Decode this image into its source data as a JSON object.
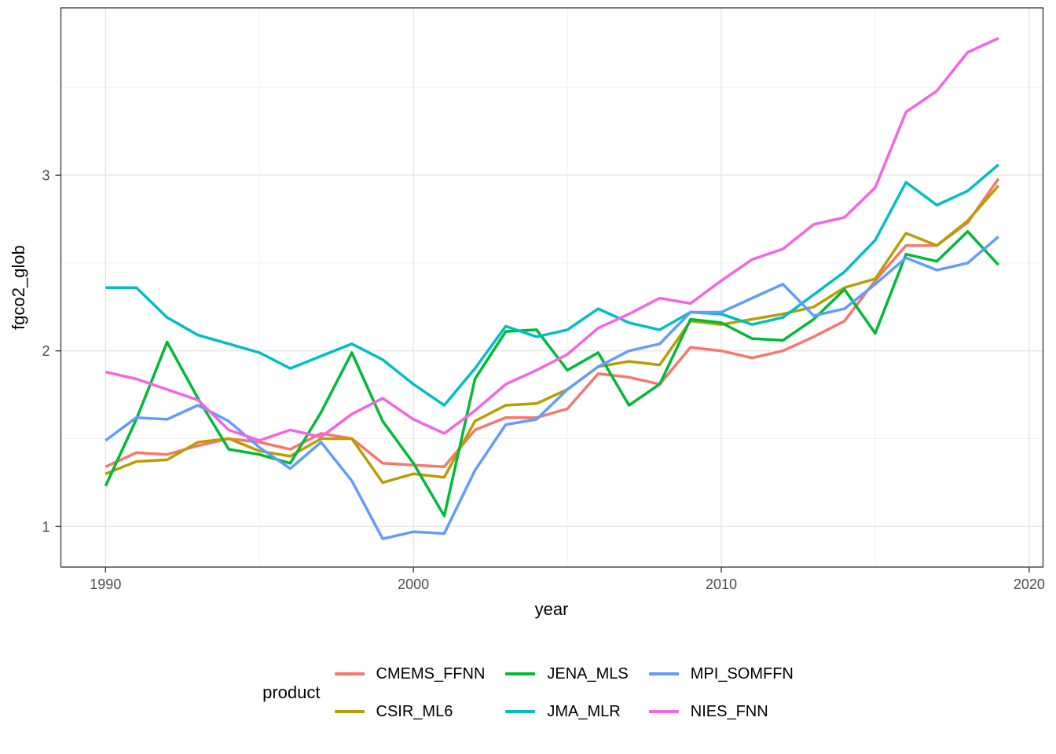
{
  "chart_data": {
    "type": "line",
    "title": "",
    "xlabel": "year",
    "ylabel": "fgco2_glob",
    "legend_title": "product",
    "legend_position": "bottom",
    "grid": true,
    "x": [
      1990,
      1991,
      1992,
      1993,
      1994,
      1995,
      1996,
      1997,
      1998,
      1999,
      2000,
      2001,
      2002,
      2003,
      2004,
      2005,
      2006,
      2007,
      2008,
      2009,
      2010,
      2011,
      2012,
      2013,
      2014,
      2015,
      2016,
      2017,
      2018,
      2019
    ],
    "series": [
      {
        "name": "CMEMS_FFNN",
        "color": "#F8766D",
        "values": [
          1.34,
          1.42,
          1.41,
          1.46,
          1.5,
          1.48,
          1.44,
          1.53,
          1.5,
          1.36,
          1.35,
          1.34,
          1.55,
          1.62,
          1.62,
          1.67,
          1.87,
          1.85,
          1.81,
          2.02,
          2.0,
          1.96,
          2.0,
          2.08,
          2.17,
          2.4,
          2.6,
          2.6,
          2.73,
          2.98
        ]
      },
      {
        "name": "CSIR_ML6",
        "color": "#B79F00",
        "values": [
          1.3,
          1.37,
          1.38,
          1.48,
          1.5,
          1.43,
          1.4,
          1.5,
          1.5,
          1.25,
          1.3,
          1.28,
          1.6,
          1.69,
          1.7,
          1.78,
          1.91,
          1.94,
          1.92,
          2.17,
          2.15,
          2.18,
          2.21,
          2.25,
          2.36,
          2.41,
          2.67,
          2.6,
          2.74,
          2.94
        ]
      },
      {
        "name": "JENA_MLS",
        "color": "#00BA38",
        "values": [
          1.23,
          1.61,
          2.05,
          1.73,
          1.44,
          1.41,
          1.36,
          1.65,
          1.99,
          1.6,
          1.36,
          1.06,
          1.84,
          2.11,
          2.12,
          1.89,
          1.99,
          1.69,
          1.81,
          2.18,
          2.16,
          2.07,
          2.06,
          2.18,
          2.35,
          2.1,
          2.55,
          2.51,
          2.68,
          2.49
        ]
      },
      {
        "name": "JMA_MLR",
        "color": "#00BFC4",
        "values": [
          2.36,
          2.36,
          2.19,
          2.09,
          2.04,
          1.99,
          1.9,
          1.97,
          2.04,
          1.95,
          1.81,
          1.69,
          1.9,
          2.14,
          2.08,
          2.12,
          2.24,
          2.16,
          2.12,
          2.22,
          2.21,
          2.15,
          2.19,
          2.32,
          2.45,
          2.63,
          2.96,
          2.83,
          2.91,
          3.06
        ]
      },
      {
        "name": "MPI_SOMFFN",
        "color": "#619CFF",
        "values": [
          1.49,
          1.62,
          1.61,
          1.69,
          1.6,
          1.45,
          1.33,
          1.48,
          1.26,
          0.93,
          0.97,
          0.96,
          1.32,
          1.58,
          1.61,
          1.78,
          1.91,
          2.0,
          2.04,
          2.22,
          2.22,
          2.3,
          2.38,
          2.2,
          2.24,
          2.38,
          2.53,
          2.46,
          2.5,
          2.65
        ]
      },
      {
        "name": "NIES_FNN",
        "color": "#F564E3",
        "values": [
          1.88,
          1.84,
          1.78,
          1.72,
          1.55,
          1.49,
          1.55,
          1.51,
          1.64,
          1.73,
          1.61,
          1.53,
          1.66,
          1.81,
          1.89,
          1.98,
          2.13,
          2.21,
          2.3,
          2.27,
          2.4,
          2.52,
          2.58,
          2.72,
          2.76,
          2.93,
          3.36,
          3.48,
          3.7,
          3.78
        ]
      }
    ],
    "x_ticks": [
      1990,
      2000,
      2010,
      2020
    ],
    "x_tick_labels": [
      "1990",
      "2000",
      "2010",
      "2020"
    ],
    "x_minor_ticks": [
      1995,
      2005,
      2015
    ],
    "y_ticks": [
      1,
      2,
      3
    ],
    "y_tick_labels": [
      "1",
      "2",
      "3"
    ],
    "y_minor_ticks": [
      1.5,
      2.5,
      3.5
    ],
    "xlim": [
      1988.55,
      2020.45
    ],
    "ylim": [
      0.769,
      3.953
    ]
  },
  "style": {
    "panel_border_color": "#333333",
    "tick_color": "#333333",
    "tick_label_color": "#4d4d4d",
    "major_grid_color": "#e5e5e5",
    "minor_grid_color": "#f0f0f0"
  }
}
